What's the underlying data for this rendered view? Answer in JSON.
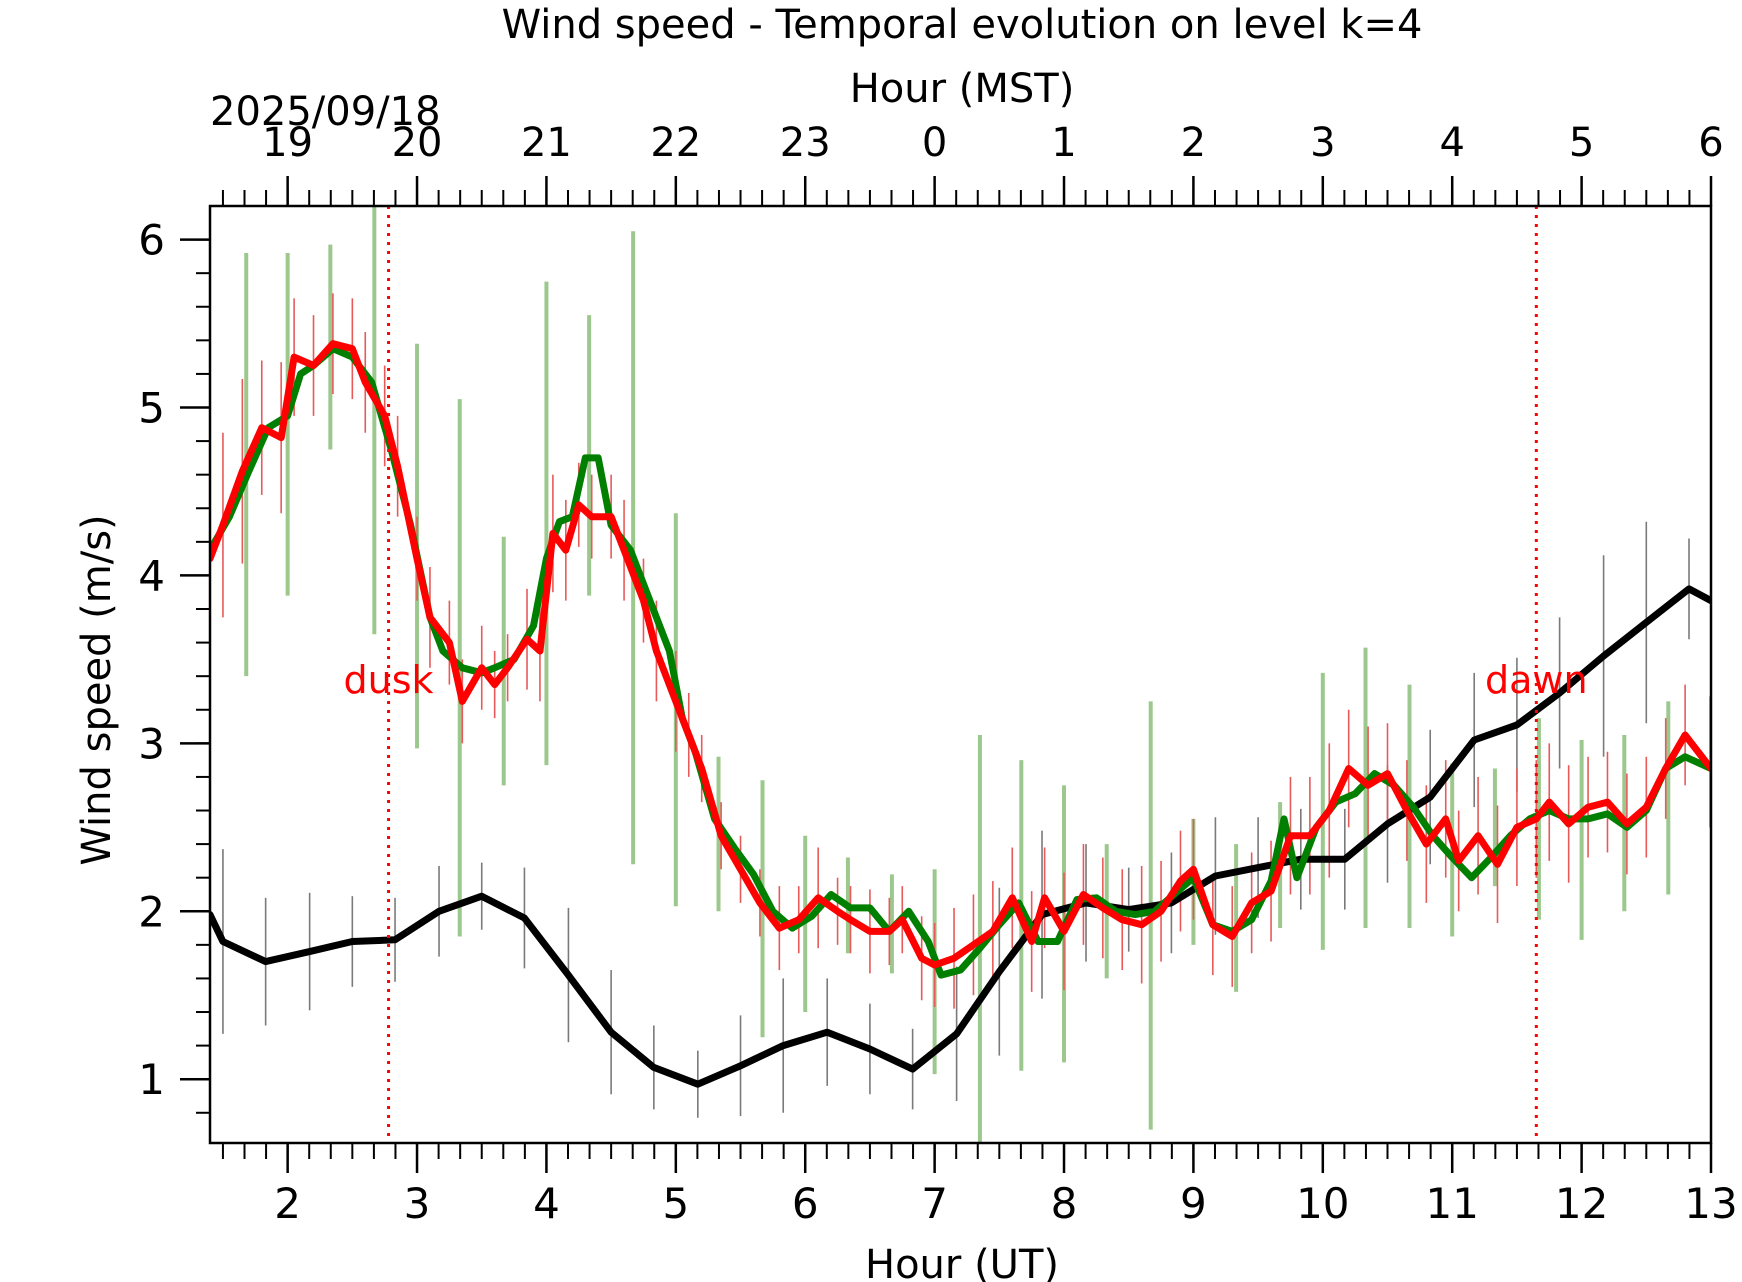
{
  "chart_data": {
    "type": "line",
    "title": "Wind speed - Temporal evolution on level k=4",
    "xlabel": "Hour (UT)",
    "ylabel": "Wind speed (m/s)",
    "top_xlabel": "Hour (MST)",
    "date": "2025/09/18",
    "xlim": [
      1.4,
      13.0
    ],
    "ylim": [
      0.62,
      6.2
    ],
    "x_ticks": [
      2,
      3,
      4,
      5,
      6,
      7,
      8,
      9,
      10,
      11,
      12,
      13
    ],
    "top_x_ticks": [
      {
        "x": 2,
        "label": "19"
      },
      {
        "x": 3,
        "label": "20"
      },
      {
        "x": 4,
        "label": "21"
      },
      {
        "x": 5,
        "label": "22"
      },
      {
        "x": 6,
        "label": "23"
      },
      {
        "x": 7,
        "label": "0"
      },
      {
        "x": 8,
        "label": "1"
      },
      {
        "x": 9,
        "label": "2"
      },
      {
        "x": 10,
        "label": "3"
      },
      {
        "x": 11,
        "label": "4"
      },
      {
        "x": 12,
        "label": "5"
      },
      {
        "x": 13,
        "label": "6"
      }
    ],
    "y_ticks": [
      1,
      2,
      3,
      4,
      5,
      6
    ],
    "grid": false,
    "annotations": [
      {
        "text": "dusk",
        "x": 2.78,
        "color": "#ff0000"
      },
      {
        "text": "dawn",
        "x": 11.65,
        "color": "#ff0000"
      }
    ],
    "series": [
      {
        "color": "#000000",
        "x": [
          1.4,
          1.5,
          1.83,
          2.17,
          2.5,
          2.83,
          3.17,
          3.5,
          3.83,
          4.17,
          4.5,
          4.83,
          5.17,
          5.5,
          5.83,
          6.17,
          6.5,
          6.83,
          7.17,
          7.5,
          7.83,
          8.17,
          8.5,
          8.83,
          9.17,
          9.5,
          9.83,
          10.17,
          10.5,
          10.83,
          11.17,
          11.5,
          11.83,
          12.17,
          12.5,
          12.83,
          13.0
        ],
        "y": [
          1.98,
          1.82,
          1.7,
          1.76,
          1.82,
          1.83,
          2.0,
          2.09,
          1.96,
          1.62,
          1.28,
          1.07,
          0.97,
          1.08,
          1.2,
          1.28,
          1.18,
          1.06,
          1.27,
          1.64,
          1.98,
          2.05,
          2.01,
          2.05,
          2.21,
          2.26,
          2.31,
          2.31,
          2.52,
          2.68,
          3.02,
          3.11,
          3.3,
          3.52,
          3.72,
          3.92,
          3.85
        ],
        "error": [
          0.55,
          0.55,
          0.38,
          0.35,
          0.27,
          0.25,
          0.27,
          0.2,
          0.3,
          0.4,
          0.37,
          0.25,
          0.2,
          0.3,
          0.4,
          0.32,
          0.27,
          0.24,
          0.4,
          0.5,
          0.5,
          0.35,
          0.25,
          0.3,
          0.35,
          0.3,
          0.3,
          0.3,
          0.35,
          0.4,
          0.4,
          0.4,
          0.45,
          0.6,
          0.6,
          0.3,
          0.3
        ]
      },
      {
        "color": "#007f00",
        "x": [
          1.4,
          1.55,
          1.7,
          1.85,
          2.0,
          2.1,
          2.2,
          2.35,
          2.5,
          2.65,
          2.8,
          2.95,
          3.1,
          3.2,
          3.35,
          3.5,
          3.6,
          3.75,
          3.9,
          4.0,
          4.1,
          4.2,
          4.3,
          4.4,
          4.5,
          4.65,
          4.8,
          4.95,
          5.05,
          5.15,
          5.3,
          5.45,
          5.6,
          5.75,
          5.9,
          6.05,
          6.2,
          6.35,
          6.5,
          6.65,
          6.8,
          6.95,
          7.05,
          7.2,
          7.35,
          7.5,
          7.65,
          7.8,
          7.95,
          8.1,
          8.25,
          8.4,
          8.55,
          8.7,
          8.85,
          9.0,
          9.15,
          9.3,
          9.45,
          9.6,
          9.7,
          9.8,
          9.95,
          10.1,
          10.25,
          10.4,
          10.55,
          10.7,
          10.85,
          11.0,
          11.15,
          11.3,
          11.45,
          11.6,
          11.75,
          11.9,
          12.05,
          12.2,
          12.35,
          12.5,
          12.65,
          12.8,
          13.0
        ],
        "y": [
          4.15,
          4.35,
          4.62,
          4.88,
          4.95,
          5.2,
          5.25,
          5.35,
          5.3,
          5.15,
          4.75,
          4.3,
          3.75,
          3.55,
          3.45,
          3.42,
          3.45,
          3.5,
          3.7,
          4.1,
          4.32,
          4.35,
          4.7,
          4.7,
          4.3,
          4.15,
          3.85,
          3.55,
          3.15,
          2.95,
          2.55,
          2.38,
          2.22,
          2.0,
          1.9,
          1.97,
          2.1,
          2.02,
          2.02,
          1.88,
          2.0,
          1.82,
          1.62,
          1.65,
          1.78,
          1.92,
          2.05,
          1.82,
          1.82,
          2.07,
          2.08,
          2.0,
          1.98,
          2.0,
          2.1,
          2.2,
          1.92,
          1.88,
          1.95,
          2.18,
          2.55,
          2.2,
          2.5,
          2.65,
          2.7,
          2.82,
          2.75,
          2.62,
          2.45,
          2.32,
          2.2,
          2.32,
          2.45,
          2.55,
          2.6,
          2.55,
          2.55,
          2.58,
          2.5,
          2.6,
          2.85,
          2.92,
          2.85
        ]
      },
      {
        "color": "#ff0000",
        "x": [
          1.4,
          1.5,
          1.65,
          1.8,
          1.95,
          2.05,
          2.2,
          2.35,
          2.5,
          2.6,
          2.75,
          2.85,
          3.0,
          3.1,
          3.25,
          3.35,
          3.5,
          3.6,
          3.7,
          3.85,
          3.95,
          4.05,
          4.15,
          4.25,
          4.35,
          4.5,
          4.6,
          4.75,
          4.85,
          5.0,
          5.1,
          5.2,
          5.35,
          5.5,
          5.65,
          5.8,
          5.95,
          6.1,
          6.25,
          6.35,
          6.5,
          6.65,
          6.75,
          6.9,
          7.0,
          7.15,
          7.3,
          7.45,
          7.6,
          7.75,
          7.85,
          8.0,
          8.15,
          8.3,
          8.45,
          8.6,
          8.75,
          8.9,
          9.0,
          9.15,
          9.3,
          9.45,
          9.6,
          9.75,
          9.9,
          10.05,
          10.2,
          10.35,
          10.5,
          10.65,
          10.8,
          10.95,
          11.05,
          11.2,
          11.35,
          11.5,
          11.65,
          11.75,
          11.9,
          12.05,
          12.2,
          12.35,
          12.5,
          12.65,
          12.8,
          13.0
        ],
        "y": [
          4.1,
          4.3,
          4.62,
          4.88,
          4.82,
          5.3,
          5.25,
          5.38,
          5.35,
          5.15,
          4.95,
          4.65,
          4.1,
          3.75,
          3.6,
          3.25,
          3.45,
          3.35,
          3.45,
          3.62,
          3.55,
          4.25,
          4.15,
          4.42,
          4.35,
          4.35,
          4.15,
          3.85,
          3.55,
          3.25,
          3.05,
          2.85,
          2.45,
          2.25,
          2.05,
          1.9,
          1.95,
          2.08,
          2.0,
          1.95,
          1.88,
          1.88,
          1.95,
          1.72,
          1.68,
          1.72,
          1.8,
          1.88,
          2.08,
          1.82,
          2.08,
          1.88,
          2.1,
          2.02,
          1.95,
          1.92,
          2.0,
          2.18,
          2.25,
          1.92,
          1.85,
          2.05,
          2.12,
          2.45,
          2.45,
          2.6,
          2.85,
          2.75,
          2.82,
          2.6,
          2.4,
          2.55,
          2.3,
          2.45,
          2.28,
          2.5,
          2.55,
          2.65,
          2.52,
          2.62,
          2.65,
          2.52,
          2.62,
          2.85,
          3.05,
          2.85
        ],
        "error": [
          0.55,
          0.55,
          0.55,
          0.4,
          0.45,
          0.35,
          0.3,
          0.3,
          0.3,
          0.3,
          0.3,
          0.3,
          0.25,
          0.3,
          0.25,
          0.25,
          0.25,
          0.2,
          0.2,
          0.3,
          0.3,
          0.35,
          0.3,
          0.25,
          0.25,
          0.25,
          0.3,
          0.25,
          0.3,
          0.3,
          0.25,
          0.2,
          0.2,
          0.2,
          0.2,
          0.25,
          0.2,
          0.3,
          0.2,
          0.2,
          0.25,
          0.2,
          0.2,
          0.25,
          0.25,
          0.3,
          0.3,
          0.3,
          0.3,
          0.3,
          0.3,
          0.35,
          0.3,
          0.3,
          0.3,
          0.35,
          0.3,
          0.3,
          0.3,
          0.3,
          0.3,
          0.3,
          0.3,
          0.35,
          0.35,
          0.4,
          0.35,
          0.35,
          0.3,
          0.3,
          0.35,
          0.35,
          0.3,
          0.35,
          0.35,
          0.35,
          0.35,
          0.35,
          0.35,
          0.3,
          0.3,
          0.3,
          0.3,
          0.3,
          0.3,
          0.3
        ]
      }
    ],
    "green_spread_bars": {
      "color": "#9dc88d",
      "x": [
        1.68,
        2.0,
        2.33,
        2.67,
        3.0,
        3.33,
        3.67,
        4.0,
        4.33,
        4.67,
        5.0,
        5.33,
        5.67,
        6.0,
        6.33,
        6.67,
        7.0,
        7.35,
        7.67,
        8.0,
        8.33,
        8.67,
        9.0,
        9.33,
        9.67,
        10.0,
        10.33,
        10.67,
        11.0,
        11.33,
        11.67,
        12.0,
        12.33,
        12.67,
        13.0
      ],
      "low": [
        3.4,
        3.88,
        4.75,
        3.65,
        2.97,
        1.85,
        2.75,
        2.87,
        3.88,
        2.28,
        2.03,
        2.0,
        1.25,
        1.4,
        1.75,
        1.63,
        1.03,
        0.62,
        1.05,
        1.1,
        1.6,
        0.7,
        1.8,
        1.52,
        1.9,
        1.77,
        1.9,
        1.9,
        1.85,
        2.15,
        1.95,
        1.83,
        2.0,
        2.1,
        2.5
      ],
      "high": [
        5.92,
        5.92,
        5.97,
        6.2,
        5.38,
        5.05,
        4.23,
        5.75,
        5.55,
        6.05,
        4.37,
        2.92,
        2.78,
        2.45,
        2.32,
        2.22,
        2.25,
        3.05,
        2.9,
        2.75,
        2.4,
        3.25,
        2.55,
        2.4,
        2.65,
        3.42,
        3.57,
        3.35,
        2.88,
        2.85,
        3.15,
        3.02,
        3.05,
        3.25,
        3.28
      ]
    }
  }
}
